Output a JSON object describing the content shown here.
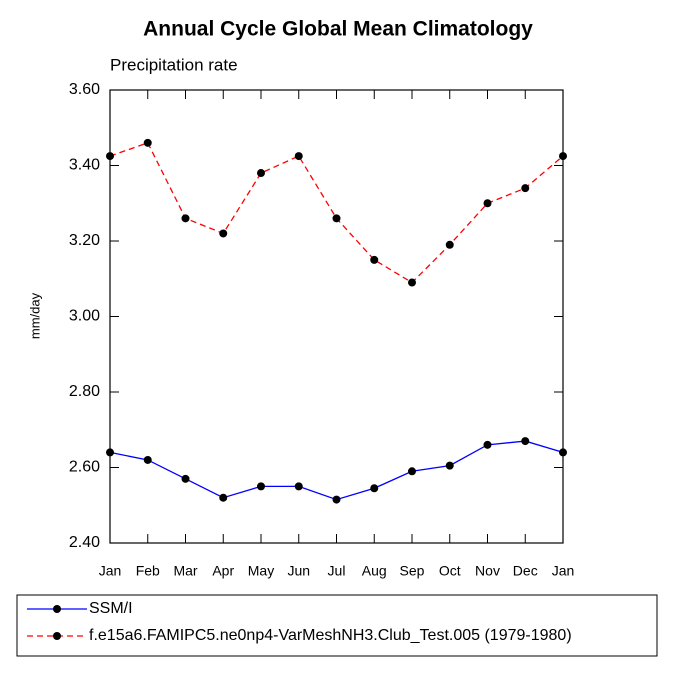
{
  "chart_data": {
    "type": "line",
    "title": "Annual Cycle Global Mean Climatology",
    "subtitle": "Precipitation rate",
    "y_label": "mm/day",
    "categories": [
      "Jan",
      "Feb",
      "Mar",
      "Apr",
      "May",
      "Jun",
      "Jul",
      "Aug",
      "Sep",
      "Oct",
      "Nov",
      "Dec",
      "Jan"
    ],
    "series": [
      {
        "name": "SSM/I",
        "color": "#0000ff",
        "dash": false,
        "values": [
          2.64,
          2.62,
          2.57,
          2.52,
          2.55,
          2.55,
          2.515,
          2.545,
          2.59,
          2.605,
          2.66,
          2.67,
          2.64
        ]
      },
      {
        "name": "f.e15a6.FAMIPC5.ne0np4-VarMeshNH3.Club_Test.005 (1979-1980)",
        "color": "#ff0000",
        "dash": true,
        "values": [
          3.425,
          3.46,
          3.26,
          3.22,
          3.38,
          3.425,
          3.26,
          3.15,
          3.09,
          3.19,
          3.3,
          3.34,
          3.425
        ]
      }
    ],
    "ylim": [
      2.4,
      3.6
    ],
    "yticks": [
      {
        "value": 2.4,
        "label": "2.40"
      },
      {
        "value": 2.6,
        "label": "2.60"
      },
      {
        "value": 2.8,
        "label": "2.80"
      },
      {
        "value": 3.0,
        "label": "3.00"
      },
      {
        "value": 3.2,
        "label": "3.20"
      },
      {
        "value": 3.4,
        "label": "3.40"
      },
      {
        "value": 3.6,
        "label": "3.60"
      }
    ],
    "grid": false,
    "legend": "bottom"
  }
}
